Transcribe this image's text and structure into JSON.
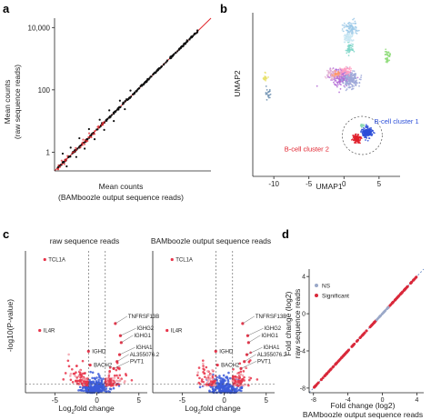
{
  "panels": {
    "a": "a",
    "b": "b",
    "c": "c",
    "d": "d"
  },
  "colors": {
    "scatter_black": "#111111",
    "diag_red": "#e0242a",
    "volcano_red": "#e8344a",
    "volcano_blue": "#3b5bd9",
    "volcano_pink": "#f2a0aa",
    "d_line": "#d9283a",
    "d_diag": "#5a7fc0",
    "bcell_blue": "#2b4ed8",
    "bcell_red": "#e01e2a"
  },
  "chart_data": [
    {
      "id": "a",
      "type": "scatter",
      "title": "",
      "xlabel": "Mean counts",
      "xlabel2": "(BAMboozle output sequence reads)",
      "ylabel": "Mean counts",
      "ylabel2": "(raw sequence reads)",
      "xscale": "log",
      "yscale": "log",
      "xlim": [
        0.25,
        20000
      ],
      "ylim": [
        0.25,
        20000
      ],
      "yticks": [
        {
          "v": 1,
          "label": "1"
        },
        {
          "v": 100,
          "label": "100"
        },
        {
          "v": 10000,
          "label": "10,000"
        }
      ],
      "reference_line": "y = x",
      "points_outliers": [
        [
          0.45,
          0.9
        ],
        [
          0.6,
          0.35
        ],
        [
          0.8,
          1.4
        ],
        [
          1.2,
          0.7
        ],
        [
          1.5,
          2.8
        ],
        [
          2.2,
          1.3
        ],
        [
          3.0,
          5.5
        ],
        [
          4.5,
          2.6
        ],
        [
          6.5,
          11
        ],
        [
          9,
          5.2
        ],
        [
          13,
          22
        ],
        [
          18,
          10
        ],
        [
          28,
          45
        ],
        [
          40,
          24
        ],
        [
          60,
          95
        ]
      ]
    },
    {
      "id": "b",
      "type": "scatter",
      "title": "",
      "xlabel": "UMAP1",
      "ylabel": "UMAP2",
      "xlim": [
        -13,
        8
      ],
      "ylim": [
        -12,
        14
      ],
      "xticks": [
        {
          "v": -10,
          "label": "-10"
        },
        {
          "v": -5,
          "label": "-5"
        },
        {
          "v": 0,
          "label": "0"
        },
        {
          "v": 5,
          "label": "5"
        }
      ],
      "annotations": [
        {
          "text": "B-cell cluster 1",
          "color": "#2b4ed8"
        },
        {
          "text": "B-cell cluster 2",
          "color": "#e01e2a"
        }
      ],
      "clusters": [
        {
          "color": "#b36ad6",
          "cx": -0.5,
          "cy": 3.8,
          "sx": 1.3,
          "sy": 1.0,
          "n": 260
        },
        {
          "color": "#9ea8d8",
          "cx": 1.0,
          "cy": 3.4,
          "sx": 0.9,
          "sy": 1.1,
          "n": 180
        },
        {
          "color": "#e8b7d2",
          "cx": -1.5,
          "cy": 4.2,
          "sx": 0.8,
          "sy": 0.6,
          "n": 80
        },
        {
          "color": "#ff9ec2",
          "cx": 0.2,
          "cy": 4.8,
          "sx": 0.6,
          "sy": 0.5,
          "n": 60
        },
        {
          "color": "#9cc9e8",
          "cx": 1.0,
          "cy": 11.5,
          "sx": 0.9,
          "sy": 0.9,
          "n": 90
        },
        {
          "color": "#c8e6f2",
          "cx": 0.6,
          "cy": 10.0,
          "sx": 0.7,
          "sy": 0.8,
          "n": 60
        },
        {
          "color": "#7fd6c8",
          "cx": 0.8,
          "cy": 8.2,
          "sx": 0.5,
          "sy": 0.6,
          "n": 45
        },
        {
          "color": "#ff9a6a",
          "cx": -1.0,
          "cy": 4.3,
          "sx": 0.4,
          "sy": 0.3,
          "n": 25
        },
        {
          "color": "#8fdc7a",
          "cx": 6.2,
          "cy": 7.0,
          "sx": 0.3,
          "sy": 0.9,
          "n": 40
        },
        {
          "color": "#e8e06a",
          "cx": -11.2,
          "cy": 3.8,
          "sx": 0.25,
          "sy": 0.6,
          "n": 20
        },
        {
          "color": "#6c8fb0",
          "cx": -10.8,
          "cy": 1.2,
          "sx": 0.35,
          "sy": 0.8,
          "n": 20
        },
        {
          "color": "#2b4ed8",
          "cx": 3.3,
          "cy": -5.0,
          "sx": 0.6,
          "sy": 0.7,
          "n": 180
        },
        {
          "color": "#e01e2a",
          "cx": 1.8,
          "cy": -6.0,
          "sx": 0.45,
          "sy": 0.55,
          "n": 120
        },
        {
          "color": "#88d6b0",
          "cx": 2.6,
          "cy": -4.0,
          "sx": 0.3,
          "sy": 0.2,
          "n": 15
        }
      ]
    },
    {
      "id": "c1",
      "type": "scatter",
      "title": "raw sequence reads",
      "xlabel": "Log2fold change",
      "ylabel": "-log10(P-value)",
      "xlim": [
        -8.5,
        6
      ],
      "ylim": [
        0,
        82
      ],
      "xticks": [
        {
          "v": -5,
          "label": "-5"
        },
        {
          "v": 0,
          "label": "0"
        },
        {
          "v": 5,
          "label": "5"
        }
      ],
      "genes": [
        {
          "name": "TCL1A",
          "x": -6.2,
          "y": 77
        },
        {
          "name": "IL4R",
          "x": -6.8,
          "y": 36
        },
        {
          "name": "IGHD",
          "x": -1.0,
          "y": 24
        },
        {
          "name": "BACH2",
          "x": -0.8,
          "y": 16
        },
        {
          "name": "TNFRSF13B",
          "x": 2.2,
          "y": 40
        },
        {
          "name": "IGHG2",
          "x": 2.8,
          "y": 33
        },
        {
          "name": "IGHG1",
          "x": 2.9,
          "y": 29
        },
        {
          "name": "IGHA1",
          "x": 2.7,
          "y": 22
        },
        {
          "name": "AL355076.2",
          "x": 2.4,
          "y": 18
        },
        {
          "name": "PVT1",
          "x": 2.0,
          "y": 14
        }
      ]
    },
    {
      "id": "c2",
      "type": "scatter",
      "title": "BAMboozle output sequence reads",
      "xlabel": "Log2fold change",
      "ylabel": "",
      "xlim": [
        -8.5,
        6
      ],
      "ylim": [
        0,
        82
      ],
      "xticks": [
        {
          "v": -5,
          "label": "-5"
        },
        {
          "v": 0,
          "label": "0"
        },
        {
          "v": 5,
          "label": "5"
        }
      ],
      "genes": [
        {
          "name": "TCL1A",
          "x": -6.2,
          "y": 77
        },
        {
          "name": "IL4R",
          "x": -6.8,
          "y": 36
        },
        {
          "name": "IGHD",
          "x": -1.0,
          "y": 24
        },
        {
          "name": "BACH2",
          "x": -0.8,
          "y": 16
        },
        {
          "name": "TNFRSF13B",
          "x": 2.2,
          "y": 40
        },
        {
          "name": "IGHG2",
          "x": 2.8,
          "y": 33
        },
        {
          "name": "IGHG1",
          "x": 2.9,
          "y": 29
        },
        {
          "name": "IGHA1",
          "x": 2.7,
          "y": 22
        },
        {
          "name": "AL355076.2",
          "x": 2.4,
          "y": 18
        },
        {
          "name": "PVT1",
          "x": 2.0,
          "y": 14
        }
      ]
    },
    {
      "id": "d",
      "type": "scatter",
      "title": "",
      "xlabel": "Fold change (log2)",
      "xlabel2": "BAMboozle output sequence reads",
      "ylabel": "Fold change (log2)",
      "ylabel2": "raw sequence reads",
      "xlim": [
        -8.5,
        4.8
      ],
      "ylim": [
        -8.5,
        4.8
      ],
      "xticks": [
        {
          "v": -8,
          "label": "-8"
        },
        {
          "v": -4,
          "label": "-4"
        },
        {
          "v": 0,
          "label": "0"
        },
        {
          "v": 4,
          "label": "4"
        }
      ],
      "yticks": [
        {
          "v": -8,
          "label": "-8"
        },
        {
          "v": -4,
          "label": "-4"
        },
        {
          "v": 0,
          "label": "0"
        },
        {
          "v": 4,
          "label": "4"
        }
      ],
      "legend": [
        {
          "label": "NS",
          "color": "#9aa8c8"
        },
        {
          "label": "Significant",
          "color": "#d9283a"
        }
      ],
      "legend_position": "top-left"
    }
  ]
}
